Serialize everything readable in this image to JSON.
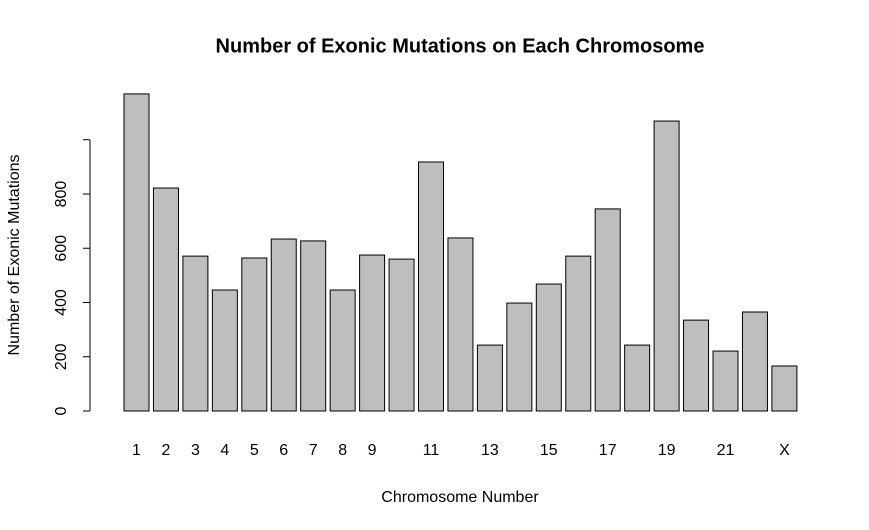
{
  "chart_data": {
    "type": "bar",
    "title": "Number of Exonic Mutations on Each Chromosome",
    "x_label": "Chromosome Number",
    "y_label": "Number of Exonic Mutations",
    "categories": [
      "1",
      "2",
      "3",
      "4",
      "5",
      "6",
      "7",
      "8",
      "9",
      null,
      "11",
      null,
      "13",
      null,
      "15",
      null,
      "17",
      null,
      "19",
      null,
      "21",
      null,
      "X"
    ],
    "values": [
      1169,
      822,
      571,
      446,
      564,
      634,
      627,
      446,
      575,
      560,
      918,
      638,
      243,
      398,
      468,
      571,
      745,
      243,
      1069,
      335,
      221,
      365,
      166
    ],
    "color": "#bebebe",
    "ylim": [
      0,
      1200
    ],
    "yticks": [
      0,
      200,
      400,
      600,
      800,
      1000
    ]
  }
}
